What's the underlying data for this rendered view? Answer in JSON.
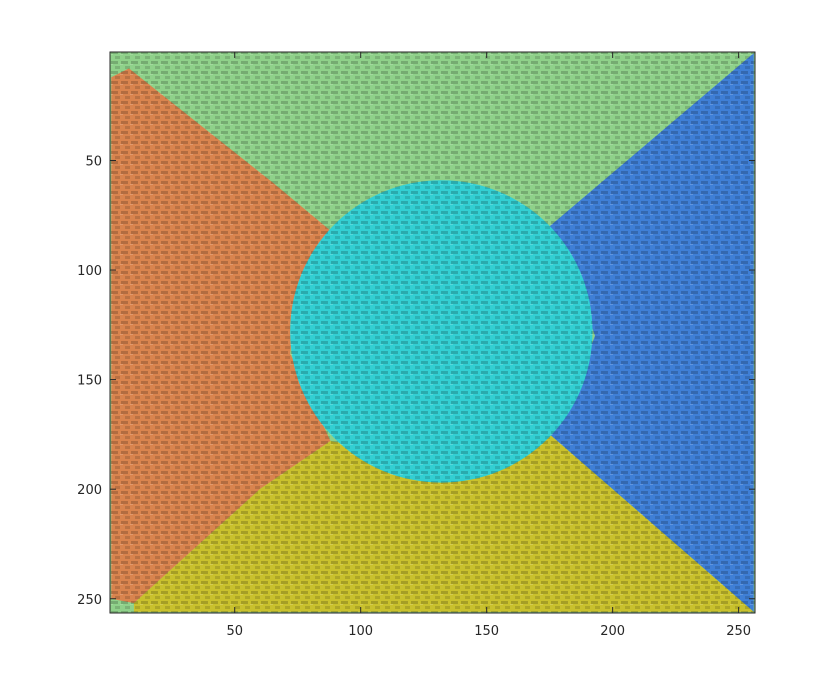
{
  "chart_data": {
    "type": "heatmap",
    "title": "",
    "xlabel": "",
    "ylabel": "",
    "xlim": [
      0.5,
      256.5
    ],
    "ylim": [
      0.5,
      256.5
    ],
    "y_direction": "reverse",
    "x_ticks": [
      50,
      100,
      150,
      200,
      250
    ],
    "y_ticks": [
      50,
      100,
      150,
      200,
      250
    ],
    "x_tick_labels": [
      "50",
      "100",
      "150",
      "200",
      "250"
    ],
    "y_tick_labels": [
      "50",
      "100",
      "150",
      "200",
      "250"
    ],
    "description_regions": [
      {
        "name": "top",
        "color": "#8fd18a",
        "points": [
          [
            1,
            1
          ],
          [
            256,
            1
          ],
          [
            175,
            80
          ],
          [
            140,
            68
          ],
          [
            110,
            67
          ],
          [
            65,
            60
          ],
          [
            8,
            8
          ]
        ]
      },
      {
        "name": "left",
        "color": "#d9844e",
        "points": [
          [
            8,
            8
          ],
          [
            65,
            60
          ],
          [
            88,
            82
          ],
          [
            75,
            112
          ],
          [
            72,
            138
          ],
          [
            88,
            178
          ],
          [
            60,
            200
          ],
          [
            10,
            252
          ],
          [
            1,
            250
          ],
          [
            1,
            12
          ]
        ]
      },
      {
        "name": "right",
        "color": "#3f7fd6",
        "points": [
          [
            256,
            1
          ],
          [
            256,
            256
          ],
          [
            175,
            175
          ],
          [
            183,
            160
          ],
          [
            193,
            130
          ],
          [
            182,
            95
          ],
          [
            175,
            80
          ]
        ]
      },
      {
        "name": "bottom",
        "color": "#c9c12d",
        "points": [
          [
            10,
            252
          ],
          [
            60,
            200
          ],
          [
            88,
            178
          ],
          [
            140,
            190
          ],
          [
            175,
            175
          ],
          [
            256,
            256
          ],
          [
            10,
            256
          ]
        ]
      },
      {
        "name": "center",
        "color": "#33cfd3",
        "circle": {
          "cx": 132,
          "cy": 128,
          "r": 60
        }
      }
    ],
    "colors": {
      "top": "#8fd18a",
      "left": "#d9844e",
      "right": "#3f7fd6",
      "bottom": "#c9c12d",
      "center": "#33cfd3"
    }
  }
}
